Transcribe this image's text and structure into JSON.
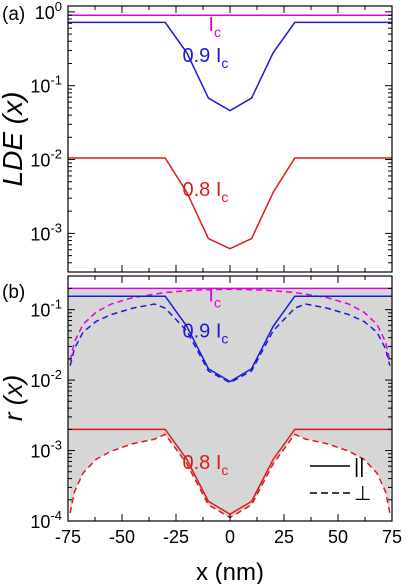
{
  "chart_data": [
    {
      "panel_label": "(a)",
      "type": "line",
      "ylabel": "LDE (x)",
      "yscale": "log",
      "ylim": [
        0.0003,
        1.2
      ],
      "xlim": [
        -75,
        75
      ],
      "ytick_labels": [
        {
          "base": "10",
          "exp": "0",
          "value": 1
        },
        {
          "base": "10",
          "exp": "-1",
          "value": 0.1
        },
        {
          "base": "10",
          "exp": "-2",
          "value": 0.01
        },
        {
          "base": "10",
          "exp": "-3",
          "value": 0.001
        }
      ],
      "series": [
        {
          "color": "#e000e0",
          "style": "solid",
          "x": [
            -75,
            75
          ],
          "y": [
            0.9,
            0.9
          ]
        },
        {
          "color": "#1a1adc",
          "style": "solid",
          "x": [
            -75,
            -30,
            -20,
            -10,
            0,
            10,
            20,
            30,
            75
          ],
          "y": [
            0.72,
            0.72,
            0.28,
            0.068,
            0.046,
            0.068,
            0.28,
            0.72,
            0.72
          ]
        },
        {
          "color": "#dc1a1a",
          "style": "solid",
          "x": [
            -75,
            -30,
            -20,
            -10,
            0,
            10,
            20,
            30,
            75
          ],
          "y": [
            0.0105,
            0.0105,
            0.0036,
            0.00085,
            0.00062,
            0.00085,
            0.0036,
            0.0105,
            0.0105
          ]
        }
      ],
      "annotations": [
        {
          "main": "I",
          "sub": "c",
          "color": "#e000e0",
          "x": -10,
          "y": 0.55
        },
        {
          "main": "0.9 I",
          "sub": "c",
          "color": "#1a1adc",
          "x": -22,
          "y": 0.21
        },
        {
          "main": "0.8 I",
          "sub": "c",
          "color": "#dc1a1a",
          "x": -22,
          "y": 0.0032
        }
      ]
    },
    {
      "panel_label": "(b)",
      "type": "line",
      "ylabel": "r (x)",
      "xlabel": "x (nm)",
      "yscale": "log",
      "ylim": [
        0.0001,
        0.3
      ],
      "xlim": [
        -75,
        75
      ],
      "xtick_labels": [
        "-75",
        "-50",
        "-25",
        "0",
        "25",
        "50",
        "75"
      ],
      "xticks": [
        -75,
        -50,
        -25,
        0,
        25,
        50,
        75
      ],
      "ytick_labels": [
        {
          "base": "10",
          "exp": "-1",
          "value": 0.1
        },
        {
          "base": "10",
          "exp": "-2",
          "value": 0.01
        },
        {
          "base": "10",
          "exp": "-3",
          "value": 0.001
        },
        {
          "base": "10",
          "exp": "-4",
          "value": 0.0001
        }
      ],
      "series": [
        {
          "color": "#e000e0",
          "style": "solid",
          "fill_to": 4,
          "x": [
            -75,
            75
          ],
          "y": [
            0.2,
            0.2
          ]
        },
        {
          "color": "#e000e0",
          "style": "dashed",
          "x": [
            -74,
            -72,
            -68,
            -62,
            -55,
            -45,
            -30,
            -15,
            0,
            15,
            30,
            45,
            55,
            62,
            68,
            72,
            74
          ],
          "y": [
            0.019,
            0.035,
            0.062,
            0.092,
            0.12,
            0.148,
            0.175,
            0.19,
            0.195,
            0.19,
            0.175,
            0.148,
            0.12,
            0.092,
            0.062,
            0.035,
            0.019
          ]
        },
        {
          "color": "#1a1adc",
          "style": "solid",
          "x": [
            -75,
            -30,
            -20,
            -10,
            0,
            10,
            20,
            30,
            75
          ],
          "y": [
            0.155,
            0.155,
            0.058,
            0.0145,
            0.0095,
            0.0145,
            0.058,
            0.155,
            0.155
          ]
        },
        {
          "color": "#1a1adc",
          "style": "dashed",
          "x": [
            -74,
            -72,
            -68,
            -62,
            -55,
            -45,
            -35,
            -30,
            -20,
            -10,
            0,
            10,
            20,
            30,
            35,
            45,
            55,
            62,
            68,
            72,
            74
          ],
          "y": [
            0.016,
            0.028,
            0.048,
            0.068,
            0.085,
            0.105,
            0.12,
            0.105,
            0.05,
            0.0135,
            0.0092,
            0.0135,
            0.05,
            0.105,
            0.12,
            0.105,
            0.085,
            0.068,
            0.048,
            0.028,
            0.016
          ]
        },
        {
          "color": "#dc1a1a",
          "style": "solid",
          "fill_to": 5,
          "x": [
            -75,
            -30,
            -20,
            -10,
            0,
            10,
            20,
            30,
            75
          ],
          "y": [
            0.002,
            0.002,
            0.00075,
            0.00019,
            0.000125,
            0.00019,
            0.00075,
            0.002,
            0.002
          ]
        },
        {
          "color": "#dc1a1a",
          "style": "dashed",
          "x": [
            -74,
            -72,
            -68,
            -62,
            -55,
            -45,
            -35,
            -30,
            -20,
            -10,
            0,
            10,
            20,
            30,
            35,
            45,
            55,
            62,
            68,
            72,
            74
          ],
          "y": [
            0.00013,
            0.00026,
            0.00048,
            0.00075,
            0.00098,
            0.00125,
            0.00145,
            0.0017,
            0.00065,
            0.00017,
            0.000112,
            0.00017,
            0.00065,
            0.0017,
            0.00145,
            0.00125,
            0.00098,
            0.00075,
            0.00048,
            0.00026,
            0.00013
          ]
        }
      ],
      "annotations": [
        {
          "main": "I",
          "sub": "c",
          "color": "#e000e0",
          "x": -10,
          "y": 0.13
        },
        {
          "main": "0.9 I",
          "sub": "c",
          "color": "#1a1adc",
          "x": -22,
          "y": 0.04
        },
        {
          "main": "0.8 I",
          "sub": "c",
          "color": "#dc1a1a",
          "x": -22,
          "y": 0.00055
        }
      ],
      "legend": {
        "placement": "bottom-right",
        "entries": [
          {
            "style": "solid",
            "label": "||"
          },
          {
            "style": "dashed",
            "label": "⊥"
          }
        ]
      }
    }
  ]
}
